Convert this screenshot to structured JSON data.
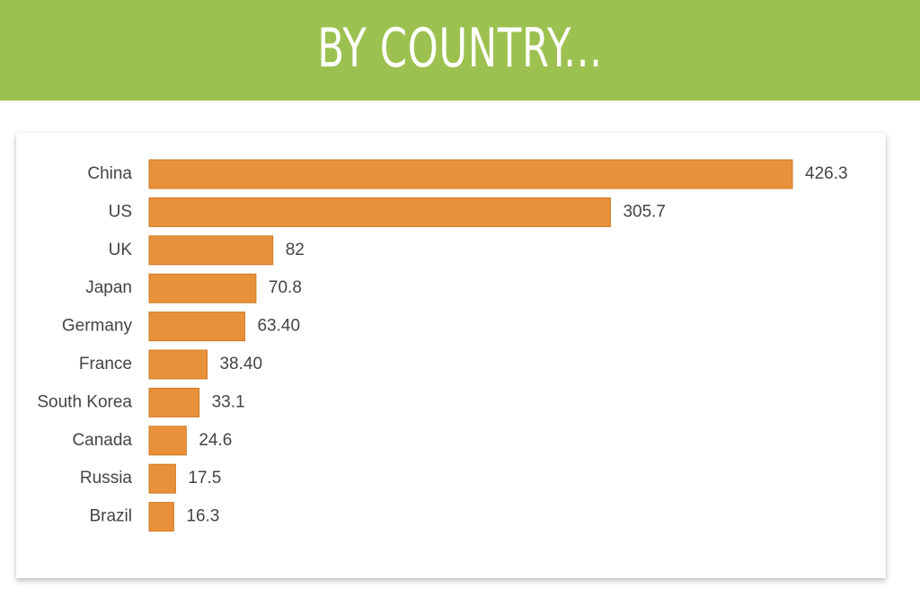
{
  "chart_data": {
    "type": "bar",
    "orientation": "horizontal",
    "title": "BY COUNTRY...",
    "categories": [
      "China",
      "US",
      "UK",
      "Japan",
      "Germany",
      "France",
      "South Korea",
      "Canada",
      "Russia",
      "Brazil"
    ],
    "values": [
      426.3,
      305.7,
      82,
      70.8,
      63.4,
      38.4,
      33.1,
      24.6,
      17.5,
      16.3
    ],
    "value_labels": [
      "426.3",
      "305.7",
      "82",
      "70.8",
      "63.40",
      "38.40",
      "33.1",
      "24.6",
      "17.5",
      "16.3"
    ],
    "color": "#e8913a"
  }
}
